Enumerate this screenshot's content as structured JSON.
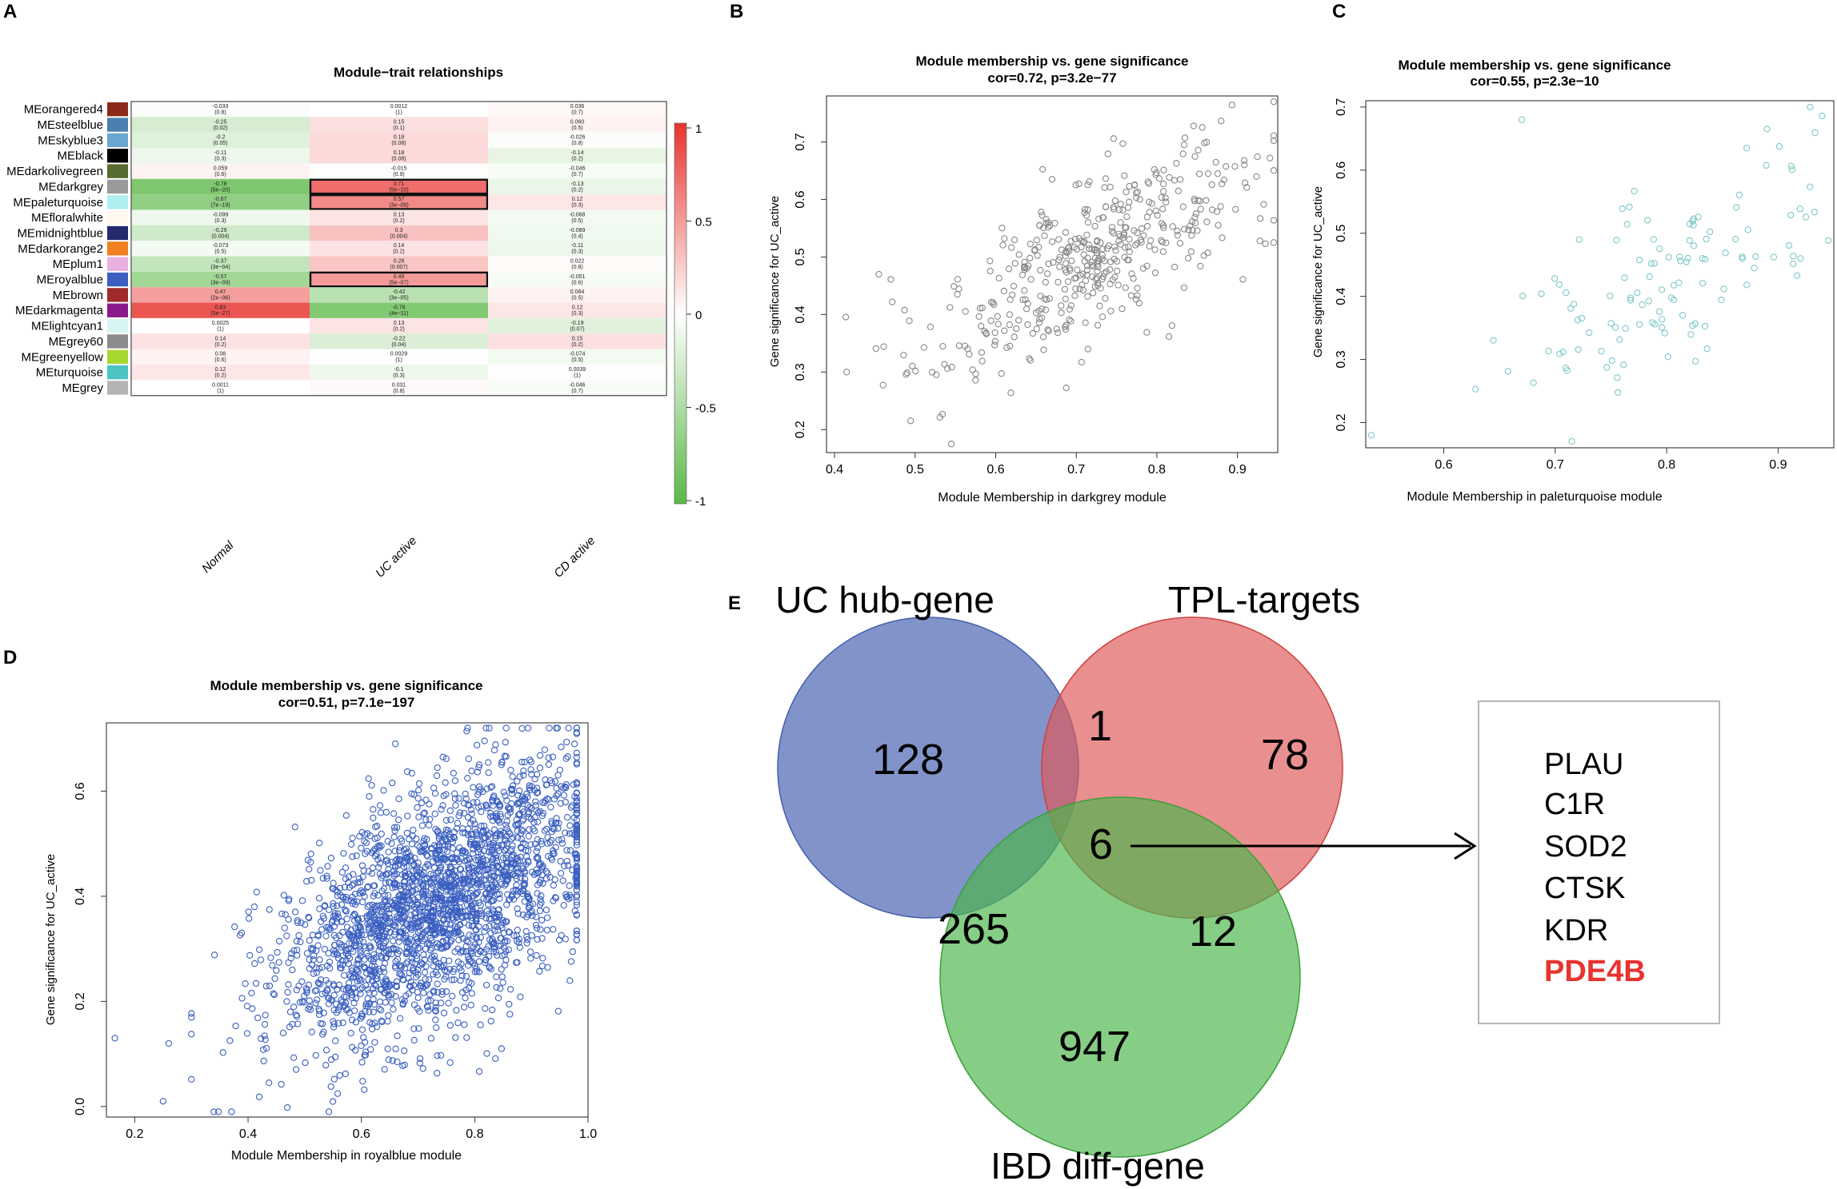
{
  "panel_letters": {
    "a": "A",
    "b": "B",
    "c": "C",
    "d": "D",
    "e": "E"
  },
  "colors": {
    "positive": "#e8332e",
    "negative": "#5bb847",
    "neutral": "#ffffff",
    "scatter_b": "#888888",
    "scatter_c": "#7fc8c8",
    "scatter_d": "#3a5fc0",
    "venn_uc": "#4660b0",
    "venn_tpl": "#de5a5a",
    "venn_ibd": "#4cb64c",
    "highlight": "#e8332e"
  },
  "chart_data": [
    {
      "id": "heatmap",
      "type": "heatmap",
      "title": "Module−trait relationships",
      "columns": [
        "Normal",
        "UC active",
        "CD active"
      ],
      "rows": [
        {
          "name": "MEorangered4",
          "color": "#8b2a1a",
          "values": [
            -0.033,
            0.0012,
            0.036
          ],
          "labels": [
            [
              "-0.033",
              "(0.8)"
            ],
            [
              "0.0012",
              "(1)"
            ],
            [
              "0.036",
              "(0.7)"
            ]
          ]
        },
        {
          "name": "MEsteelblue",
          "color": "#4a7fb0",
          "values": [
            -0.25,
            0.15,
            0.06
          ],
          "labels": [
            [
              "-0.25",
              "(0.02)"
            ],
            [
              "0.15",
              "(0.1)"
            ],
            [
              "0.060",
              "(0.5)"
            ]
          ]
        },
        {
          "name": "MEskyblue3",
          "color": "#6aa6d0",
          "values": [
            -0.2,
            0.18,
            -0.026
          ],
          "labels": [
            [
              "-0.2",
              "(0.05)"
            ],
            [
              "0.18",
              "(0.08)"
            ],
            [
              "-0.026",
              "(0.8)"
            ]
          ]
        },
        {
          "name": "MEblack",
          "color": "#000000",
          "values": [
            -0.11,
            0.18,
            -0.14
          ],
          "labels": [
            [
              "-0.11",
              "(0.3)"
            ],
            [
              "0.18",
              "(0.08)"
            ],
            [
              "-0.14",
              "(0.2)"
            ]
          ]
        },
        {
          "name": "MEdarkolivegreen",
          "color": "#556b2f",
          "values": [
            0.059,
            -0.015,
            -0.046
          ],
          "labels": [
            [
              "0.059",
              "(0.6)"
            ],
            [
              "-0.015",
              "(0.9)"
            ],
            [
              "-0.046",
              "(0.7)"
            ]
          ]
        },
        {
          "name": "MEdarkgrey",
          "color": "#9a9a9a",
          "values": [
            -0.78,
            0.71,
            -0.13
          ],
          "labels": [
            [
              "-0.78",
              "(5e−20)"
            ],
            [
              "0.71",
              "(5e−10)"
            ],
            [
              "-0.13",
              "(0.2)"
            ]
          ],
          "boxed": [
            1
          ]
        },
        {
          "name": "MEpaleturquoise",
          "color": "#afeeee",
          "values": [
            -0.67,
            0.57,
            0.12
          ],
          "labels": [
            [
              "-0.67",
              "(7e−19)"
            ],
            [
              "0.57",
              "(3e−09)"
            ],
            [
              "0.12",
              "(0.3)"
            ]
          ],
          "boxed": [
            1
          ]
        },
        {
          "name": "MEfloralwhite",
          "color": "#fff8ee",
          "values": [
            -0.099,
            0.13,
            -0.068
          ],
          "labels": [
            [
              "-0.099",
              "(0.3)"
            ],
            [
              "0.13",
              "(0.2)"
            ],
            [
              "-0.068",
              "(0.5)"
            ]
          ]
        },
        {
          "name": "MEmidnightblue",
          "color": "#242a6e",
          "values": [
            -0.29,
            0.3,
            -0.089
          ],
          "labels": [
            [
              "-0.29",
              "(0.004)"
            ],
            [
              "0.3",
              "(0.004)"
            ],
            [
              "-0.089",
              "(0.4)"
            ]
          ]
        },
        {
          "name": "MEdarkorange2",
          "color": "#f08020",
          "values": [
            -0.073,
            0.14,
            -0.11
          ],
          "labels": [
            [
              "-0.073",
              "(0.5)"
            ],
            [
              "0.14",
              "(0.2)"
            ],
            [
              "-0.11",
              "(0.3)"
            ]
          ]
        },
        {
          "name": "MEplum1",
          "color": "#e8b0e0",
          "values": [
            -0.37,
            0.28,
            0.022
          ],
          "labels": [
            [
              "-0.37",
              "(3e−04)"
            ],
            [
              "0.28",
              "(0.007)"
            ],
            [
              "0.022",
              "(0.8)"
            ]
          ]
        },
        {
          "name": "MEroyalblue",
          "color": "#3a5fc0",
          "values": [
            -0.57,
            0.49,
            -0.051
          ],
          "labels": [
            [
              "-0.57",
              "(3e−09)"
            ],
            [
              "0.49",
              "(5e−07)"
            ],
            [
              "-0.051",
              "(0.6)"
            ]
          ],
          "boxed": [
            1
          ]
        },
        {
          "name": "MEbrown",
          "color": "#a02a2a",
          "values": [
            0.47,
            -0.42,
            0.064
          ],
          "labels": [
            [
              "0.47",
              "(2e−06)"
            ],
            [
              "-0.42",
              "(3e−05)"
            ],
            [
              "0.064",
              "(0.5)"
            ]
          ]
        },
        {
          "name": "MEdarkmagenta",
          "color": "#8b1a8b",
          "values": [
            0.83,
            -0.76,
            0.12
          ],
          "labels": [
            [
              "0.83",
              "(5e−27)"
            ],
            [
              "-0.76",
              "(4e−11)"
            ],
            [
              "0.12",
              "(0.3)"
            ]
          ]
        },
        {
          "name": "MElightcyan1",
          "color": "#d8f4f4",
          "values": [
            0.0025,
            0.13,
            -0.19
          ],
          "labels": [
            [
              "0.0025",
              "(1)"
            ],
            [
              "0.13",
              "(0.2)"
            ],
            [
              "-0.19",
              "(0.07)"
            ]
          ]
        },
        {
          "name": "MEgrey60",
          "color": "#8c8c8c",
          "values": [
            0.14,
            -0.22,
            0.15
          ],
          "labels": [
            [
              "0.14",
              "(0.2)"
            ],
            [
              "-0.22",
              "(0.04)"
            ],
            [
              "0.15",
              "(0.2)"
            ]
          ]
        },
        {
          "name": "MEgreenyellow",
          "color": "#a8d830",
          "values": [
            0.06,
            0.0029,
            -0.074
          ],
          "labels": [
            [
              "0.06",
              "(0.6)"
            ],
            [
              "0.0029",
              "(1)"
            ],
            [
              "-0.074",
              "(0.5)"
            ]
          ]
        },
        {
          "name": "MEturquoise",
          "color": "#4cc4c4",
          "values": [
            0.12,
            -0.1,
            0.0039
          ],
          "labels": [
            [
              "0.12",
              "(0.2)"
            ],
            [
              "-0.1",
              "(0.3)"
            ],
            [
              "0.0039",
              "(1)"
            ]
          ]
        },
        {
          "name": "MEgrey",
          "color": "#b4b4b4",
          "values": [
            0.0011,
            0.031,
            -0.046
          ],
          "labels": [
            [
              "0.0011",
              "(1)"
            ],
            [
              "0.031",
              "(0.8)"
            ],
            [
              "-0.046",
              "(0.7)"
            ]
          ]
        }
      ],
      "legend": {
        "min": -1,
        "max": 1,
        "ticks": [
          "1",
          "0.5",
          "0",
          "-0.5",
          "-1"
        ]
      }
    },
    {
      "id": "scatter_b",
      "type": "scatter",
      "title": "Module membership vs. gene significance",
      "subtitle": "cor=0.72, p=3.2e−77",
      "xlabel": "Module Membership in darkgrey module",
      "ylabel": "Gene significance for UC_active",
      "xlim": [
        0.39,
        0.95
      ],
      "ylim": [
        0.16,
        0.78
      ],
      "xticks": [
        "0.4",
        "0.5",
        "0.6",
        "0.7",
        "0.8",
        "0.9"
      ],
      "yticks": [
        "0.2",
        "0.3",
        "0.4",
        "0.5",
        "0.6",
        "0.7"
      ],
      "n_points": 450,
      "cor": 0.72,
      "x_dist": {
        "mean": 0.72,
        "sd": 0.1,
        "min": 0.41,
        "max": 0.945
      },
      "y_fit": {
        "slope": 0.75,
        "intercept": -0.04,
        "noise": 0.07
      },
      "outliers": [
        [
          0.415,
          0.3
        ],
        [
          0.455,
          0.47
        ],
        [
          0.545,
          0.175
        ]
      ]
    },
    {
      "id": "scatter_c",
      "type": "scatter",
      "title": "Module membership vs. gene significance",
      "subtitle": "cor=0.55, p=2.3e−10",
      "xlabel": "Module Membership in paleturquoise module",
      "ylabel": "Gene significance for UC_active",
      "xlim": [
        0.53,
        0.95
      ],
      "ylim": [
        0.16,
        0.71
      ],
      "xticks": [
        "0.6",
        "0.7",
        "0.8",
        "0.9"
      ],
      "yticks": [
        "0.2",
        "0.3",
        "0.4",
        "0.5",
        "0.6",
        "0.7"
      ],
      "n_points": 120,
      "cor": 0.55,
      "x_dist": {
        "mean": 0.8,
        "sd": 0.08,
        "min": 0.59,
        "max": 0.945
      },
      "y_fit": {
        "slope": 0.9,
        "intercept": -0.3,
        "noise": 0.08
      },
      "outliers": [
        [
          0.535,
          0.18
        ],
        [
          0.67,
          0.68
        ],
        [
          0.89,
          0.665
        ]
      ]
    },
    {
      "id": "scatter_d",
      "type": "scatter",
      "title": "Module membership vs. gene significance",
      "subtitle": "cor=0.51, p=7.1e−197",
      "xlabel": "Module Membership in royalblue module",
      "ylabel": "Gene significance for UC_active",
      "xlim": [
        0.15,
        1.0
      ],
      "ylim": [
        -0.02,
        0.73
      ],
      "xticks": [
        "0.2",
        "0.4",
        "0.6",
        "0.8",
        "1.0"
      ],
      "yticks": [
        "0.0",
        "0.2",
        "0.4",
        "0.6"
      ],
      "n_points": 2400,
      "cor": 0.51,
      "x_dist": {
        "mean": 0.74,
        "sd": 0.14,
        "min": 0.3,
        "max": 0.98
      },
      "y_fit": {
        "slope": 0.55,
        "intercept": -0.02,
        "noise": 0.11
      },
      "outliers": [
        [
          0.165,
          0.13
        ],
        [
          0.25,
          0.01
        ],
        [
          0.26,
          0.12
        ],
        [
          0.82,
          0.72
        ],
        [
          0.66,
          0.69
        ]
      ]
    }
  ],
  "venn": {
    "sets": [
      "UC hub-gene",
      "TPL-targets",
      "IBD diff-gene"
    ],
    "only_uc": "128",
    "only_tpl": "78",
    "only_ibd": "947",
    "uc_tpl": "1",
    "uc_ibd": "265",
    "tpl_ibd": "12",
    "all_three": "6"
  },
  "genes": [
    "PLAU",
    "C1R",
    "SOD2",
    "CTSK",
    "KDR"
  ],
  "highlight_gene": "PDE4B"
}
